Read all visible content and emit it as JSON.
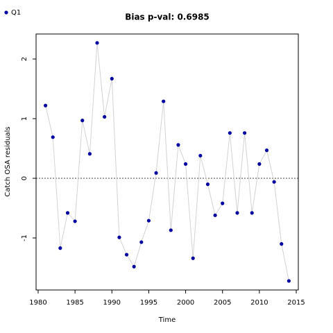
{
  "chart_data": {
    "type": "line",
    "title": "Bias p-val: 0.6985",
    "title_color": "#228b22",
    "x_label": "Time",
    "y_label": "Catch OSA residuals",
    "x": [
      1981,
      1982,
      1983,
      1984,
      1985,
      1986,
      1987,
      1988,
      1989,
      1990,
      1991,
      1992,
      1993,
      1994,
      1995,
      1996,
      1997,
      1998,
      1999,
      2000,
      2001,
      2002,
      2003,
      2004,
      2005,
      2006,
      2007,
      2008,
      2009,
      2010,
      2011,
      2012,
      2013,
      2014
    ],
    "series": [
      {
        "name": "Q1",
        "color": "#0000a0",
        "line_color": "#d3d3d3",
        "values": [
          1.22,
          0.69,
          -1.17,
          -0.58,
          -0.72,
          0.97,
          0.41,
          2.27,
          1.03,
          1.67,
          -0.99,
          -1.28,
          -1.48,
          -1.07,
          -0.71,
          0.09,
          1.29,
          -0.87,
          0.56,
          0.24,
          -1.34,
          0.38,
          -0.1,
          -0.62,
          -0.42,
          0.76,
          -0.58,
          0.76,
          -0.58,
          0.24,
          0.47,
          -0.06,
          -1.1,
          -1.72
        ]
      }
    ],
    "xlim": [
      1979.72,
      2015.28
    ],
    "ylim": [
      -1.872,
      2.419
    ],
    "xticks": [
      1980,
      1985,
      1990,
      1995,
      2000,
      2005,
      2010,
      2015
    ],
    "yticks": [
      -1,
      0,
      1,
      2
    ],
    "hline": 0,
    "legend": "top-left",
    "grid": false
  }
}
